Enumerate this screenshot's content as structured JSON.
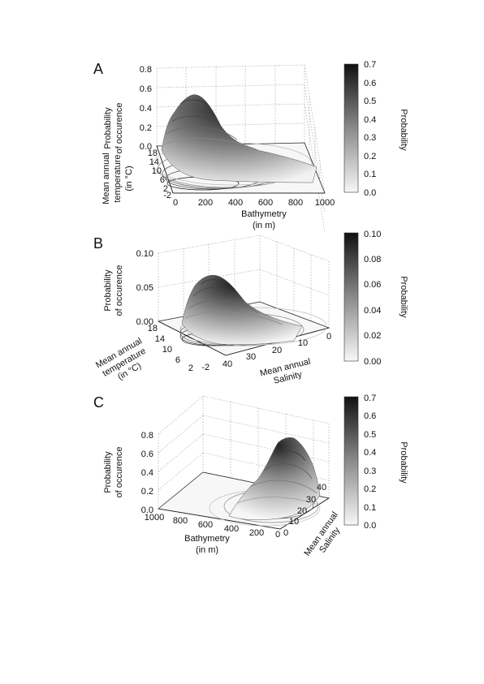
{
  "colorbar_scale": "grayscale, light (low) to dark (high)",
  "chart_data": [
    {
      "panel": "A",
      "type": "surface3d",
      "zlabel": "Probability of occurence",
      "ylabel": "Mean annual temperature (in °C)",
      "xlabel": "Bathymetry (in m)",
      "x_ticks": [
        "0",
        "200",
        "400",
        "600",
        "800",
        "1000"
      ],
      "y_ticks": [
        "-2",
        "2",
        "6",
        "10",
        "14",
        "18"
      ],
      "z_ticks": [
        "0.0",
        "0.2",
        "0.4",
        "0.6",
        "0.8"
      ],
      "xlim": [
        0,
        1000
      ],
      "ylim": [
        -2,
        18
      ],
      "zlim": [
        0,
        0.8
      ],
      "colorbar_label": "Probability",
      "colorbar_ticks": [
        "0.0",
        "0.1",
        "0.2",
        "0.3",
        "0.4",
        "0.5",
        "0.6",
        "0.7"
      ],
      "colorbar_range": [
        0,
        0.7
      ],
      "peak": {
        "x": 150,
        "y": 8,
        "z": 0.5
      }
    },
    {
      "panel": "B",
      "type": "surface3d",
      "zlabel": "Probability of occurence",
      "ylabel": "Mean annual temperature (in °C)",
      "xlabel": "Mean annual Salinity",
      "x_ticks": [
        "40",
        "30",
        "20",
        "10",
        "0"
      ],
      "y_ticks": [
        "-2",
        "2",
        "6",
        "10",
        "14",
        "18"
      ],
      "z_ticks": [
        "0.00",
        "0.05",
        "0.10"
      ],
      "xlim": [
        40,
        0
      ],
      "ylim": [
        -2,
        18
      ],
      "zlim": [
        0,
        0.1
      ],
      "colorbar_label": "Probability",
      "colorbar_ticks": [
        "0.00",
        "0.02",
        "0.04",
        "0.06",
        "0.08",
        "0.10"
      ],
      "colorbar_range": [
        0,
        0.1
      ],
      "peak": {
        "x": 34,
        "y": 8,
        "z": 0.08
      }
    },
    {
      "panel": "C",
      "type": "surface3d",
      "zlabel": "Probability of occurence",
      "ylabel": "Mean annual Salinity",
      "xlabel": "Bathymetry (in m)",
      "x_ticks": [
        "1000",
        "800",
        "600",
        "400",
        "200",
        "0"
      ],
      "y_ticks": [
        "0",
        "10",
        "20",
        "30",
        "40"
      ],
      "z_ticks": [
        "0.0",
        "0.2",
        "0.4",
        "0.6",
        "0.8"
      ],
      "xlim": [
        1000,
        0
      ],
      "ylim": [
        0,
        40
      ],
      "zlim": [
        0,
        0.8
      ],
      "colorbar_label": "Probability",
      "colorbar_ticks": [
        "0.0",
        "0.1",
        "0.2",
        "0.3",
        "0.4",
        "0.5",
        "0.6",
        "0.7"
      ],
      "colorbar_range": [
        0,
        0.7
      ],
      "peak": {
        "x": 100,
        "y": 34,
        "z": 0.55
      }
    }
  ]
}
